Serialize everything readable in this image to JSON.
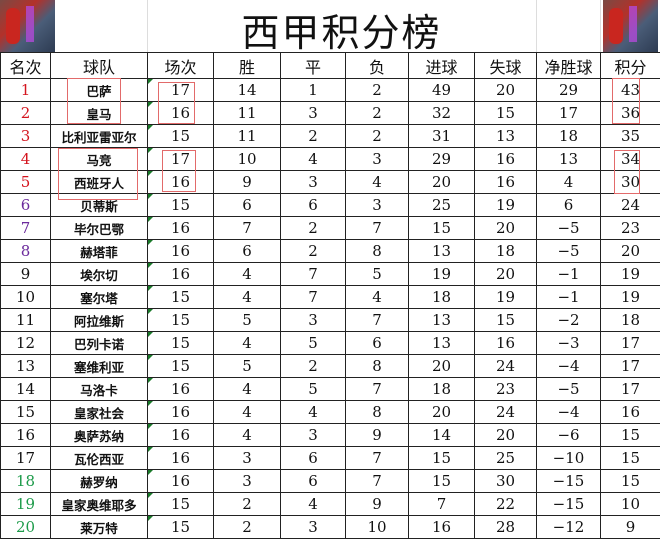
{
  "title": "西甲积分榜",
  "headers": [
    "名次",
    "球队",
    "场次",
    "胜",
    "平",
    "负",
    "进球",
    "失球",
    "净胜球",
    "积分"
  ],
  "colors": {
    "top": "#d4141e",
    "europa": "#6b2a9c",
    "relegation": "#1d9b4a",
    "highlight_box": "#e26a6a"
  },
  "rows": [
    {
      "rank": "1",
      "team": "巴萨",
      "played": "17",
      "w": "14",
      "d": "1",
      "l": "2",
      "gf": "49",
      "ga": "20",
      "gd": "29",
      "pts": "43",
      "zone": "red"
    },
    {
      "rank": "2",
      "team": "皇马",
      "played": "16",
      "w": "11",
      "d": "3",
      "l": "2",
      "gf": "32",
      "ga": "15",
      "gd": "17",
      "pts": "36",
      "zone": "red"
    },
    {
      "rank": "3",
      "team": "比利亚雷亚尔",
      "played": "15",
      "w": "11",
      "d": "2",
      "l": "2",
      "gf": "31",
      "ga": "13",
      "gd": "18",
      "pts": "35",
      "zone": "red"
    },
    {
      "rank": "4",
      "team": "马竞",
      "played": "17",
      "w": "10",
      "d": "4",
      "l": "3",
      "gf": "29",
      "ga": "16",
      "gd": "13",
      "pts": "34",
      "zone": "red"
    },
    {
      "rank": "5",
      "team": "西班牙人",
      "played": "16",
      "w": "9",
      "d": "3",
      "l": "4",
      "gf": "20",
      "ga": "16",
      "gd": "4",
      "pts": "30",
      "zone": "red"
    },
    {
      "rank": "6",
      "team": "贝蒂斯",
      "played": "15",
      "w": "6",
      "d": "6",
      "l": "3",
      "gf": "25",
      "ga": "19",
      "gd": "6",
      "pts": "24",
      "zone": "purple"
    },
    {
      "rank": "7",
      "team": "毕尔巴鄂",
      "played": "16",
      "w": "7",
      "d": "2",
      "l": "7",
      "gf": "15",
      "ga": "20",
      "gd": "−5",
      "pts": "23",
      "zone": "purple"
    },
    {
      "rank": "8",
      "team": "赫塔菲",
      "played": "16",
      "w": "6",
      "d": "2",
      "l": "8",
      "gf": "13",
      "ga": "18",
      "gd": "−5",
      "pts": "20",
      "zone": "purple"
    },
    {
      "rank": "9",
      "team": "埃尔切",
      "played": "16",
      "w": "4",
      "d": "7",
      "l": "5",
      "gf": "19",
      "ga": "20",
      "gd": "−1",
      "pts": "19",
      "zone": ""
    },
    {
      "rank": "10",
      "team": "塞尔塔",
      "played": "15",
      "w": "4",
      "d": "7",
      "l": "4",
      "gf": "18",
      "ga": "19",
      "gd": "−1",
      "pts": "19",
      "zone": ""
    },
    {
      "rank": "11",
      "team": "阿拉维斯",
      "played": "15",
      "w": "5",
      "d": "3",
      "l": "7",
      "gf": "13",
      "ga": "15",
      "gd": "−2",
      "pts": "18",
      "zone": ""
    },
    {
      "rank": "12",
      "team": "巴列卡诺",
      "played": "15",
      "w": "4",
      "d": "5",
      "l": "6",
      "gf": "13",
      "ga": "16",
      "gd": "−3",
      "pts": "17",
      "zone": ""
    },
    {
      "rank": "13",
      "team": "塞维利亚",
      "played": "15",
      "w": "5",
      "d": "2",
      "l": "8",
      "gf": "20",
      "ga": "24",
      "gd": "−4",
      "pts": "17",
      "zone": ""
    },
    {
      "rank": "14",
      "team": "马洛卡",
      "played": "16",
      "w": "4",
      "d": "5",
      "l": "7",
      "gf": "18",
      "ga": "23",
      "gd": "−5",
      "pts": "17",
      "zone": ""
    },
    {
      "rank": "15",
      "team": "皇家社会",
      "played": "16",
      "w": "4",
      "d": "4",
      "l": "8",
      "gf": "20",
      "ga": "24",
      "gd": "−4",
      "pts": "16",
      "zone": ""
    },
    {
      "rank": "16",
      "team": "奥萨苏纳",
      "played": "16",
      "w": "4",
      "d": "3",
      "l": "9",
      "gf": "14",
      "ga": "20",
      "gd": "−6",
      "pts": "15",
      "zone": ""
    },
    {
      "rank": "17",
      "team": "瓦伦西亚",
      "played": "16",
      "w": "3",
      "d": "6",
      "l": "7",
      "gf": "15",
      "ga": "25",
      "gd": "−10",
      "pts": "15",
      "zone": ""
    },
    {
      "rank": "18",
      "team": "赫罗纳",
      "played": "16",
      "w": "3",
      "d": "6",
      "l": "7",
      "gf": "15",
      "ga": "30",
      "gd": "−15",
      "pts": "15",
      "zone": "green"
    },
    {
      "rank": "19",
      "team": "皇家奥维耶多",
      "played": "15",
      "w": "2",
      "d": "4",
      "l": "9",
      "gf": "7",
      "ga": "22",
      "gd": "−15",
      "pts": "10",
      "zone": "green"
    },
    {
      "rank": "20",
      "team": "莱万特",
      "played": "15",
      "w": "2",
      "d": "3",
      "l": "10",
      "gf": "16",
      "ga": "28",
      "gd": "−12",
      "pts": "9",
      "zone": "green"
    }
  ]
}
